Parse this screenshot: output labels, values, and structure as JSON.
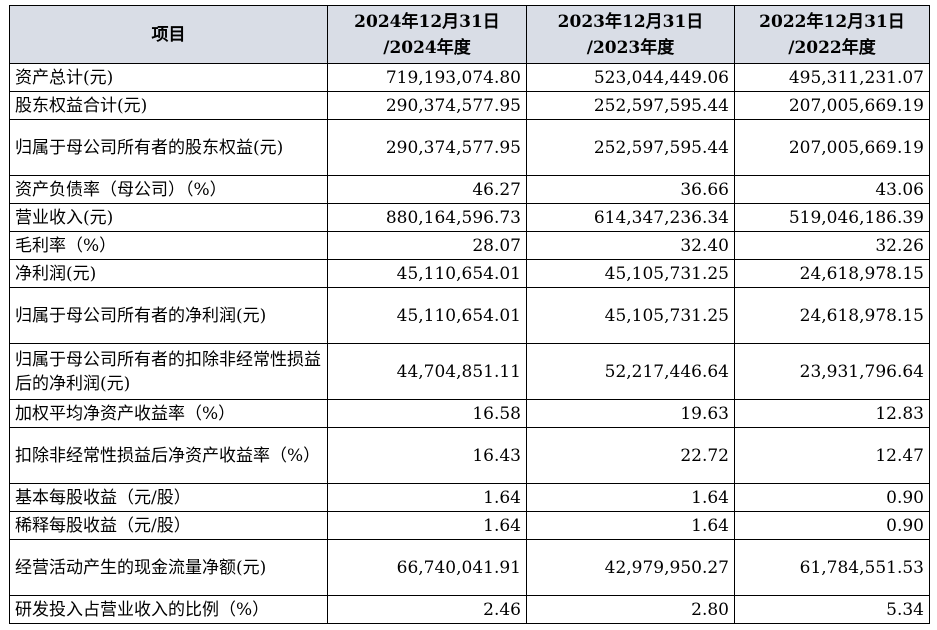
{
  "table": {
    "headers": [
      "项目",
      "2024年12月31日\n/2024年度",
      "2023年12月31日\n/2023年度",
      "2022年12月31日\n/2022年度"
    ],
    "rows": [
      {
        "label": "资产总计(元)",
        "values": [
          "719,193,074.80",
          "523,044,449.06",
          "495,311,231.07"
        ]
      },
      {
        "label": "股东权益合计(元)",
        "values": [
          "290,374,577.95",
          "252,597,595.44",
          "207,005,669.19"
        ]
      },
      {
        "label": "归属于母公司所有者的股东权益(元)",
        "values": [
          "290,374,577.95",
          "252,597,595.44",
          "207,005,669.19"
        ]
      },
      {
        "label": "资产负债率（母公司）（%）",
        "values": [
          "46.27",
          "36.66",
          "43.06"
        ]
      },
      {
        "label": "营业收入(元)",
        "values": [
          "880,164,596.73",
          "614,347,236.34",
          "519,046,186.39"
        ]
      },
      {
        "label": "毛利率（%）",
        "values": [
          "28.07",
          "32.40",
          "32.26"
        ]
      },
      {
        "label": "净利润(元)",
        "values": [
          "45,110,654.01",
          "45,105,731.25",
          "24,618,978.15"
        ]
      },
      {
        "label": "归属于母公司所有者的净利润(元)",
        "values": [
          "45,110,654.01",
          "45,105,731.25",
          "24,618,978.15"
        ]
      },
      {
        "label": "归属于母公司所有者的扣除非经常性损益后的净利润(元)",
        "values": [
          "44,704,851.11",
          "52,217,446.64",
          "23,931,796.64"
        ]
      },
      {
        "label": "加权平均净资产收益率（%）",
        "values": [
          "16.58",
          "19.63",
          "12.83"
        ]
      },
      {
        "label": "扣除非经常性损益后净资产收益率（%）",
        "values": [
          "16.43",
          "22.72",
          "12.47"
        ]
      },
      {
        "label": "基本每股收益（元/股）",
        "values": [
          "1.64",
          "1.64",
          "0.90"
        ]
      },
      {
        "label": "稀释每股收益（元/股）",
        "values": [
          "1.64",
          "1.64",
          "0.90"
        ]
      },
      {
        "label": "经营活动产生的现金流量净额(元)",
        "values": [
          "66,740,041.91",
          "42,979,950.27",
          "61,784,551.53"
        ]
      },
      {
        "label": "研发投入占营业收入的比例（%）",
        "values": [
          "2.46",
          "2.80",
          "5.34"
        ]
      }
    ]
  }
}
